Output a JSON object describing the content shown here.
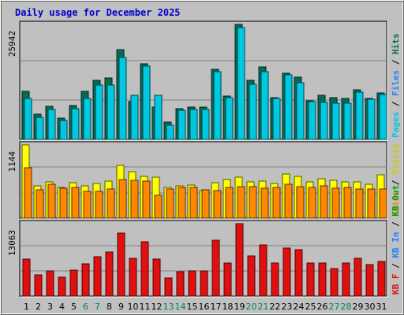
{
  "chart_data": {
    "type": "bar",
    "title": "Daily usage for December 2025",
    "categories": [
      "1",
      "2",
      "3",
      "4",
      "5",
      "6",
      "7",
      "8",
      "9",
      "10",
      "11",
      "12",
      "13",
      "14",
      "15",
      "16",
      "17",
      "18",
      "19",
      "20",
      "21",
      "22",
      "23",
      "24",
      "25",
      "26",
      "27",
      "28",
      "29",
      "30",
      "31"
    ],
    "weekend_days": [
      "6",
      "7",
      "13",
      "14",
      "20",
      "21",
      "27",
      "28"
    ],
    "colors": {
      "hits": "#066b55",
      "files": "#00c8e0",
      "pages": "#00c8e0",
      "sites": "#ff8800",
      "visits": "#ffff00",
      "kbf": "#e01010",
      "kbin": "#2080ff",
      "kbout": "#00a000",
      "weekday_label": "#000000",
      "weekend_label": "#00805a",
      "panel_bg": "#c0c0c0",
      "title": "#0000cc"
    },
    "panels": [
      {
        "id": "hits-files-pages",
        "ymax_label": "25942",
        "ymax": 25942,
        "right_label": [
          {
            "text": "Pages",
            "color": "#00c8e0"
          },
          {
            "text": " / ",
            "color": "#000000"
          },
          {
            "text": "Files",
            "color": "#2080ff"
          },
          {
            "text": " / ",
            "color": "#000000"
          },
          {
            "text": "Hits",
            "color": "#066b55"
          }
        ],
        "series": [
          {
            "name": "Hits",
            "values": [
              10800,
              5600,
              7400,
              4800,
              7700,
              10900,
              13400,
              13900,
              20300,
              8500,
              17100,
              7300,
              3900,
              6900,
              7300,
              7300,
              15900,
              9800,
              25942,
              13400,
              16300,
              9400,
              14900,
              14000,
              8700,
              9900,
              9400,
              9200,
              11200,
              9200,
              10400
            ]
          },
          {
            "name": "Files",
            "values": [
              9300,
              4900,
              6800,
              4200,
              7000,
              9200,
              12200,
              12200,
              18500,
              10000,
              16500,
              9900,
              3200,
              6500,
              6800,
              6800,
              15300,
              9400,
              25200,
              12400,
              15200,
              9300,
              14600,
              12800,
              8500,
              8400,
              8200,
              8200,
              10700,
              9000,
              10100
            ]
          }
        ]
      },
      {
        "id": "visits-sites",
        "ymax_label": "1144",
        "ymax": 1144,
        "right_label": [
          {
            "text": "Sites",
            "color": "#ff8800"
          },
          {
            "text": " / ",
            "color": "#000000"
          },
          {
            "text": "Visits",
            "color": "#cccc00"
          }
        ],
        "series": [
          {
            "name": "Visits",
            "values": [
              1144,
              500,
              560,
              480,
              550,
              510,
              540,
              580,
              820,
              730,
              650,
              640,
              480,
              500,
              520,
              430,
              550,
              600,
              640,
              560,
              580,
              540,
              690,
              650,
              560,
              620,
              590,
              560,
              560,
              530,
              680
            ]
          },
          {
            "name": "Sites",
            "values": [
              790,
              440,
              530,
              470,
              480,
              420,
              420,
              450,
              600,
              590,
              580,
              360,
              460,
              480,
              480,
              440,
              430,
              480,
              490,
              490,
              470,
              480,
              530,
              490,
              480,
              500,
              470,
              480,
              450,
              460,
              450
            ]
          }
        ]
      },
      {
        "id": "kbytes",
        "ymax_label": "13063",
        "ymax": 13063,
        "right_label": [
          {
            "text": "KB F",
            "color": "#e01010"
          },
          {
            "text": " / ",
            "color": "#000000"
          },
          {
            "text": "KB In",
            "color": "#2080ff"
          },
          {
            "text": " / ",
            "color": "#000000"
          },
          {
            "text": "KB Out",
            "color": "#00a000"
          }
        ],
        "series": [
          {
            "name": "KB F",
            "values": [
              6700,
              3900,
              4500,
              3400,
              4700,
              5800,
              7100,
              7900,
              11400,
              6800,
              9800,
              6700,
              3200,
              4400,
              4500,
              4500,
              10100,
              5900,
              13063,
              7300,
              9200,
              5900,
              8700,
              8400,
              6000,
              6000,
              5000,
              6000,
              6800,
              5700,
              6300
            ]
          }
        ]
      }
    ]
  }
}
